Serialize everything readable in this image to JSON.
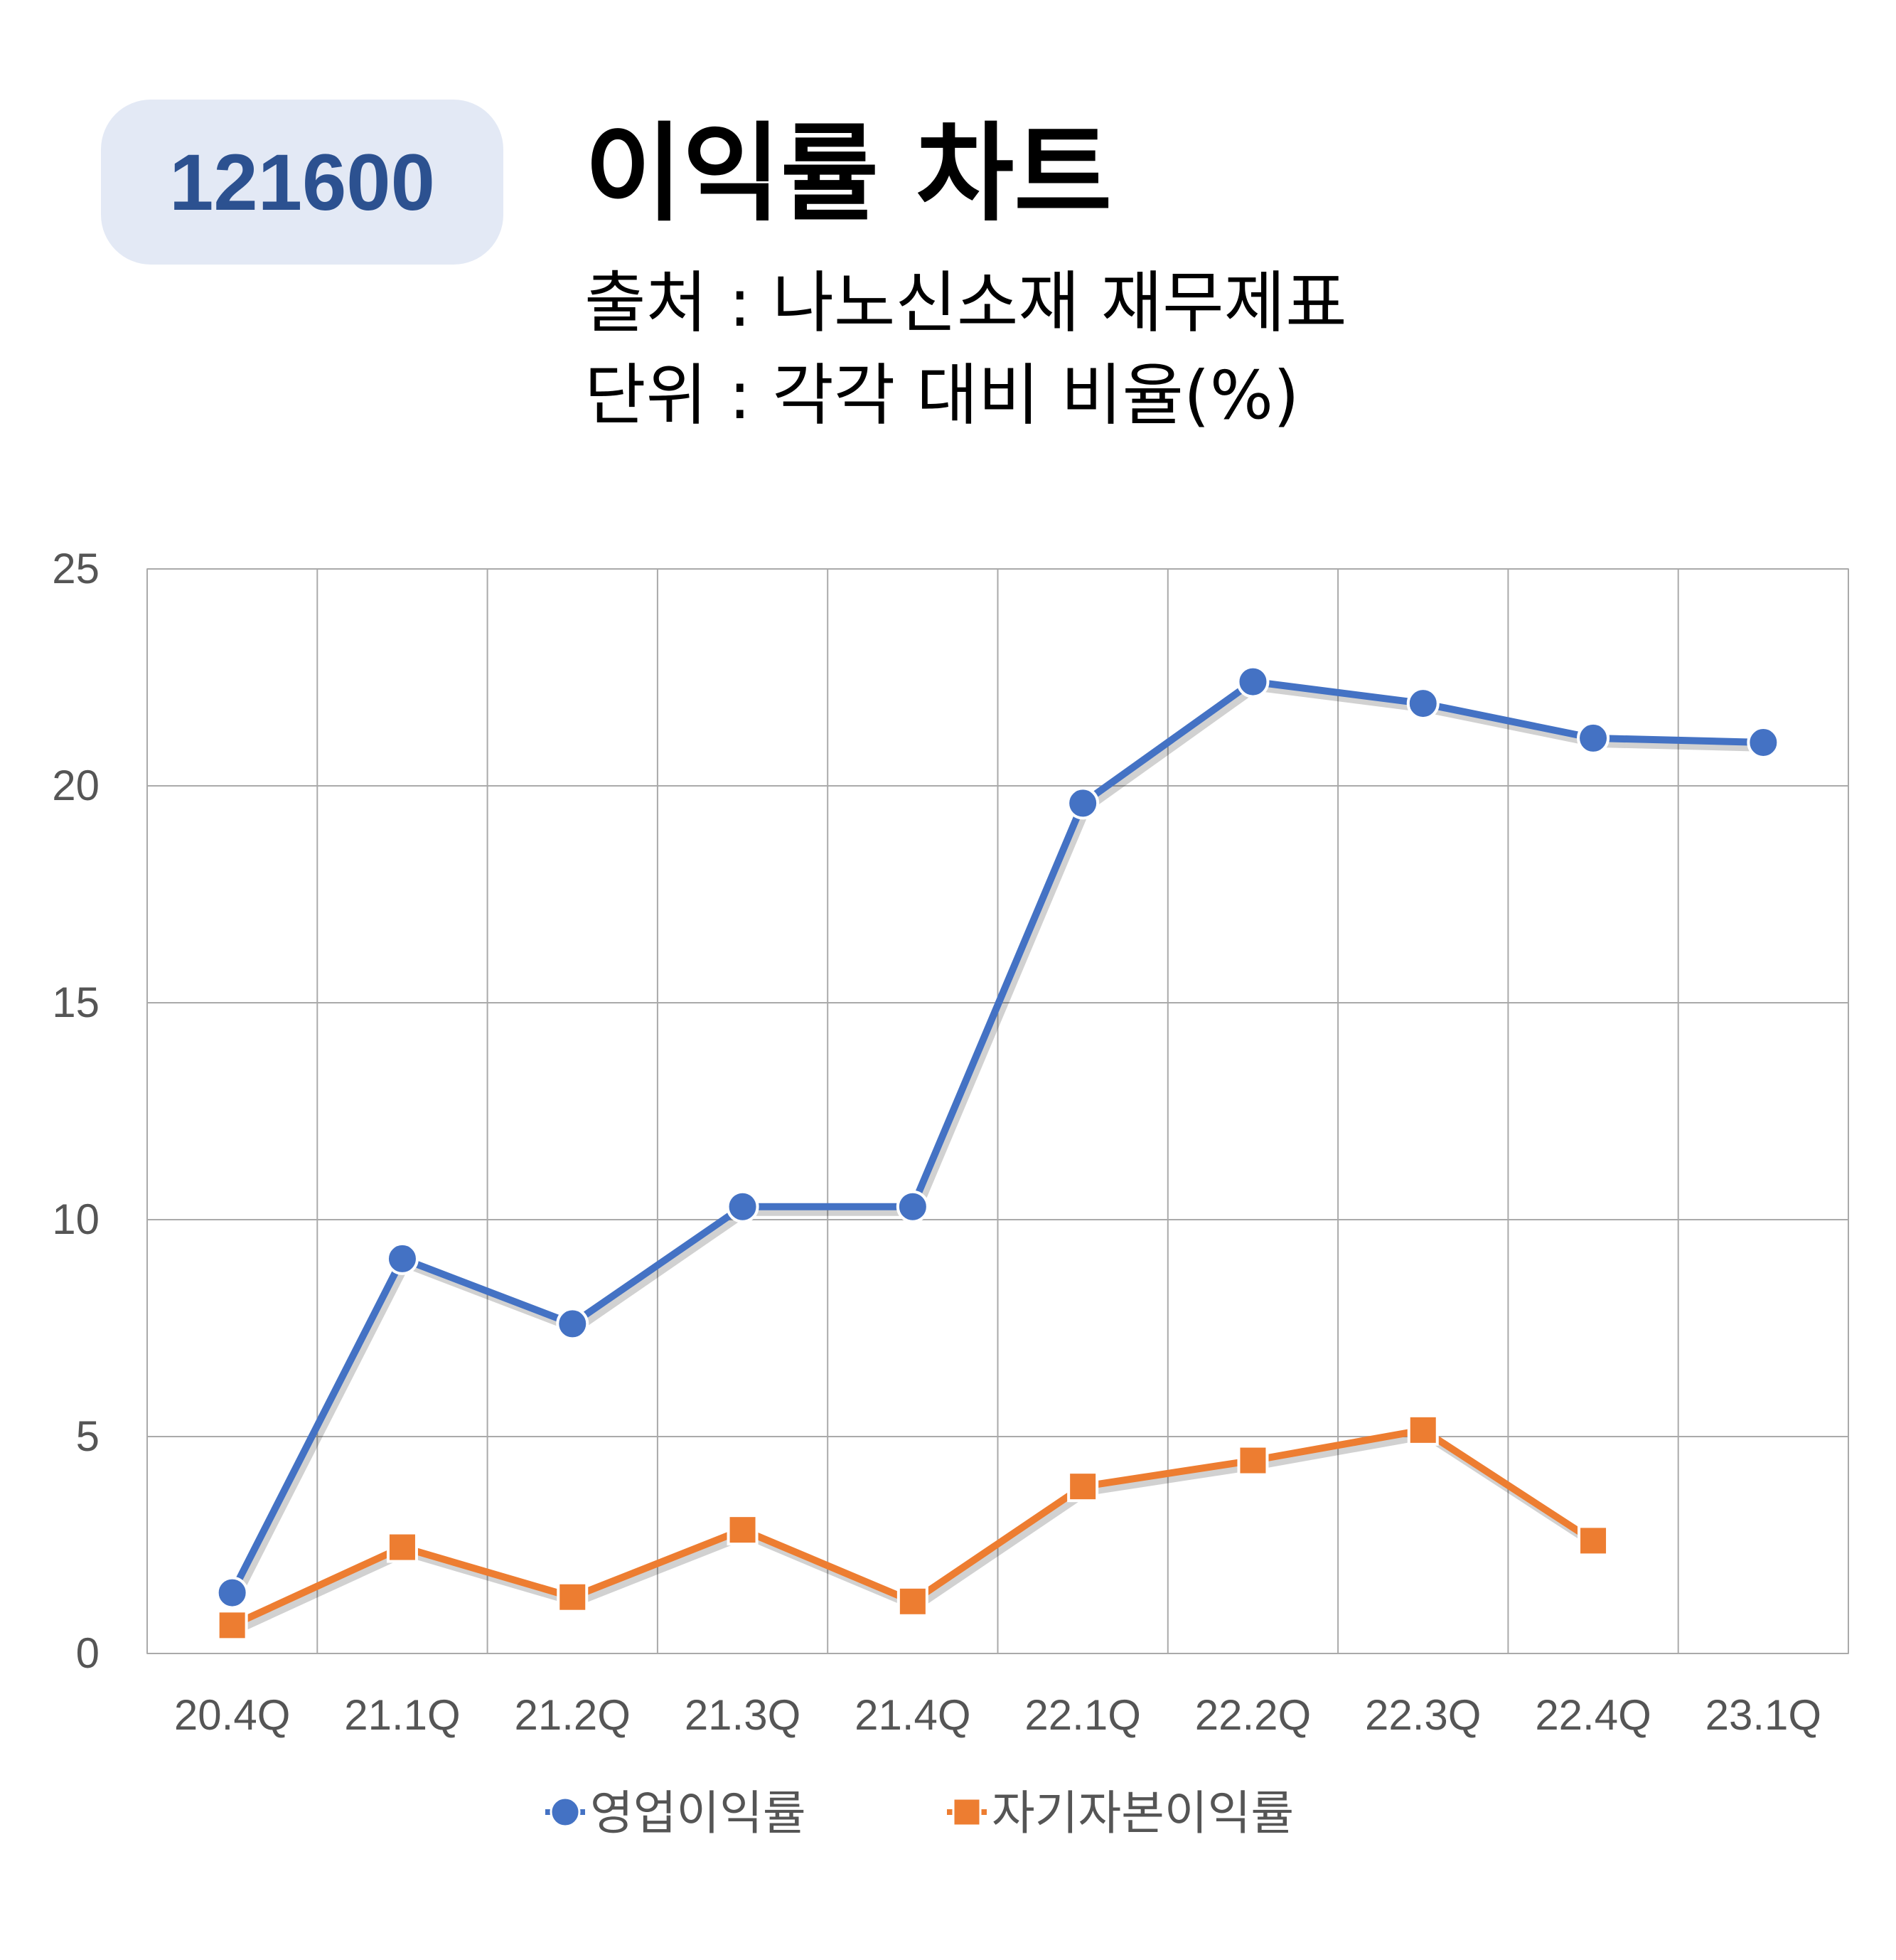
{
  "header": {
    "code": "121600",
    "title": "이익률 차트",
    "source": "출처 : 나노신소재 재무제표",
    "unit": "단위 : 각각 대비 비율(%)"
  },
  "chart_data": {
    "type": "line",
    "categories": [
      "20.4Q",
      "21.1Q",
      "21.2Q",
      "21.3Q",
      "21.4Q",
      "22.1Q",
      "22.2Q",
      "22.3Q",
      "22.4Q",
      "23.1Q"
    ],
    "ylim": [
      0,
      25
    ],
    "yticks": [
      0,
      5,
      10,
      15,
      20,
      25
    ],
    "grid": true,
    "legend": "bottom",
    "series": [
      {
        "name": "영업이익률",
        "marker": "circle",
        "color": "#4472c4",
        "values": [
          1.4,
          9.1,
          7.6,
          10.3,
          10.3,
          19.6,
          22.4,
          21.9,
          21.1,
          21.0
        ]
      },
      {
        "name": "자기자본이익률",
        "marker": "square",
        "color": "#ed7d31",
        "values": [
          0.65,
          2.45,
          1.3,
          2.85,
          1.2,
          3.85,
          4.45,
          5.15,
          2.6,
          null
        ]
      }
    ]
  }
}
